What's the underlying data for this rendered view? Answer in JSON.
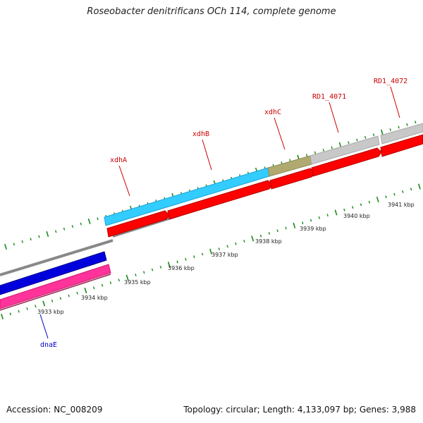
{
  "title": "Roseobacter denitrificans OCh 114, complete genome",
  "footer": {
    "accession": "Accession: NC_008209",
    "summary": "Topology: circular; Length: 4,133,097 bp; Genes: 3,988"
  },
  "colors": {
    "backbone": "#8a8a8a",
    "tick": "#1a8a1a",
    "forward_gene": "#ff0000",
    "label_red": "#cc0000",
    "label_blue": "#0000cc",
    "xdhA_xdhB": "#33ccff",
    "xdhC": "#b0aa70",
    "RD1_4071_4072": "#c8c8c8",
    "dnaE": "#0000dd",
    "dnaE_feature": "#ff3399"
  },
  "scale_labels": [
    "3933 kbp",
    "3934 kbp",
    "3935 kbp",
    "3936 kbp",
    "3937 kbp",
    "3938 kbp",
    "3939 kbp",
    "3940 kbp",
    "3941 kbp"
  ],
  "genes": [
    {
      "name": "xdhA",
      "color": "label_red"
    },
    {
      "name": "xdhB",
      "color": "label_red"
    },
    {
      "name": "xdhC",
      "color": "label_red"
    },
    {
      "name": "RD1_4071",
      "color": "label_red"
    },
    {
      "name": "RD1_4072",
      "color": "label_red"
    },
    {
      "name": "dnaE",
      "color": "label_blue"
    }
  ]
}
